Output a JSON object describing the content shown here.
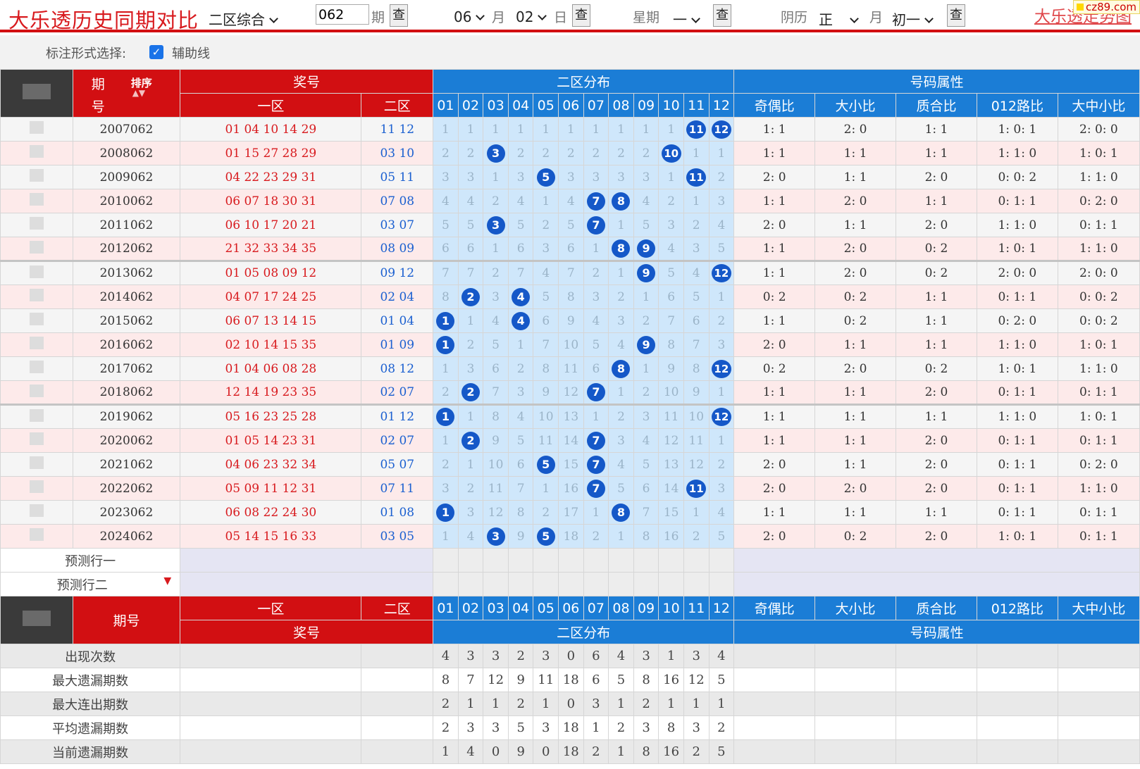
{
  "toolbar": {
    "title": "大乐透历史同期对比",
    "mode_select": "二区综合",
    "issue_value": "062",
    "issue_unit": "期",
    "query_label": "查",
    "month_value": "06",
    "month_unit": "月",
    "day_value": "02",
    "day_unit": "日",
    "week_label": "星期",
    "week_value": "一",
    "lunar_label": "阴历",
    "lunar_month": "正",
    "lunar_month_unit": "月",
    "lunar_day": "初一",
    "link_text": "大乐透走势图",
    "logo_text": "cz89.com"
  },
  "options": {
    "label": "标注形式选择:",
    "guide_line_label": "辅助线",
    "guide_line_checked": true
  },
  "header": {
    "issue_label_top": "期",
    "issue_label_bottom": "号",
    "sort_label": "排序",
    "prize": "奖号",
    "zone1": "一区",
    "zone2": "二区",
    "distribution": "二区分布",
    "attributes": "号码属性",
    "numbers": [
      "01",
      "02",
      "03",
      "04",
      "05",
      "06",
      "07",
      "08",
      "09",
      "10",
      "11",
      "12"
    ],
    "attr_names": [
      "奇偶比",
      "大小比",
      "质合比",
      "012路比",
      "大中小比"
    ]
  },
  "rows": [
    {
      "issue": "2007062",
      "zone1": "01 04 10 14 29",
      "zone2": "11 12",
      "dist": [
        "1",
        "1",
        "1",
        "1",
        "1",
        "1",
        "1",
        "1",
        "1",
        "1",
        "11",
        "12"
      ],
      "attrs": [
        "1: 1",
        "2: 0",
        "1: 1",
        "1: 0: 1",
        "2: 0: 0"
      ]
    },
    {
      "issue": "2008062",
      "zone1": "01 15 27 28 29",
      "zone2": "03 10",
      "dist": [
        "2",
        "2",
        "3",
        "2",
        "2",
        "2",
        "2",
        "2",
        "2",
        "10",
        "1",
        "1"
      ],
      "attrs": [
        "1: 1",
        "1: 1",
        "1: 1",
        "1: 1: 0",
        "1: 0: 1"
      ]
    },
    {
      "issue": "2009062",
      "zone1": "04 22 23 29 31",
      "zone2": "05 11",
      "dist": [
        "3",
        "3",
        "1",
        "3",
        "5",
        "3",
        "3",
        "3",
        "3",
        "1",
        "11",
        "2"
      ],
      "attrs": [
        "2: 0",
        "1: 1",
        "2: 0",
        "0: 0: 2",
        "1: 1: 0"
      ]
    },
    {
      "issue": "2010062",
      "zone1": "06 07 18 30 31",
      "zone2": "07 08",
      "dist": [
        "4",
        "4",
        "2",
        "4",
        "1",
        "4",
        "7",
        "8",
        "4",
        "2",
        "1",
        "3"
      ],
      "attrs": [
        "1: 1",
        "2: 0",
        "1: 1",
        "0: 1: 1",
        "0: 2: 0"
      ]
    },
    {
      "issue": "2011062",
      "zone1": "06 10 17 20 21",
      "zone2": "03 07",
      "dist": [
        "5",
        "5",
        "3",
        "5",
        "2",
        "5",
        "7",
        "1",
        "5",
        "3",
        "2",
        "4"
      ],
      "attrs": [
        "2: 0",
        "1: 1",
        "2: 0",
        "1: 1: 0",
        "0: 1: 1"
      ]
    },
    {
      "issue": "2012062",
      "zone1": "21 32 33 34 35",
      "zone2": "08 09",
      "dist": [
        "6",
        "6",
        "1",
        "6",
        "3",
        "6",
        "1",
        "8",
        "9",
        "4",
        "3",
        "5"
      ],
      "attrs": [
        "1: 1",
        "2: 0",
        "0: 2",
        "1: 0: 1",
        "1: 1: 0"
      ]
    },
    {
      "issue": "2013062",
      "zone1": "01 05 08 09 12",
      "zone2": "09 12",
      "dist": [
        "7",
        "7",
        "2",
        "7",
        "4",
        "7",
        "2",
        "1",
        "9",
        "5",
        "4",
        "12"
      ],
      "attrs": [
        "1: 1",
        "2: 0",
        "0: 2",
        "2: 0: 0",
        "2: 0: 0"
      ]
    },
    {
      "issue": "2014062",
      "zone1": "04 07 17 24 25",
      "zone2": "02 04",
      "dist": [
        "8",
        "2",
        "3",
        "4",
        "5",
        "8",
        "3",
        "2",
        "1",
        "6",
        "5",
        "1"
      ],
      "attrs": [
        "0: 2",
        "0: 2",
        "1: 1",
        "0: 1: 1",
        "0: 0: 2"
      ]
    },
    {
      "issue": "2015062",
      "zone1": "06 07 13 14 15",
      "zone2": "01 04",
      "dist": [
        "1",
        "1",
        "4",
        "4",
        "6",
        "9",
        "4",
        "3",
        "2",
        "7",
        "6",
        "2"
      ],
      "attrs": [
        "1: 1",
        "0: 2",
        "1: 1",
        "0: 2: 0",
        "0: 0: 2"
      ]
    },
    {
      "issue": "2016062",
      "zone1": "02 10 14 15 35",
      "zone2": "01 09",
      "dist": [
        "1",
        "2",
        "5",
        "1",
        "7",
        "10",
        "5",
        "4",
        "9",
        "8",
        "7",
        "3"
      ],
      "attrs": [
        "2: 0",
        "1: 1",
        "1: 1",
        "1: 1: 0",
        "1: 0: 1"
      ]
    },
    {
      "issue": "2017062",
      "zone1": "01 04 06 08 28",
      "zone2": "08 12",
      "dist": [
        "1",
        "3",
        "6",
        "2",
        "8",
        "11",
        "6",
        "8",
        "1",
        "9",
        "8",
        "12"
      ],
      "attrs": [
        "0: 2",
        "2: 0",
        "0: 2",
        "1: 0: 1",
        "1: 1: 0"
      ]
    },
    {
      "issue": "2018062",
      "zone1": "12 14 19 23 35",
      "zone2": "02 07",
      "dist": [
        "2",
        "2",
        "7",
        "3",
        "9",
        "12",
        "7",
        "1",
        "2",
        "10",
        "9",
        "1"
      ],
      "attrs": [
        "1: 1",
        "1: 1",
        "2: 0",
        "0: 1: 1",
        "0: 1: 1"
      ]
    },
    {
      "issue": "2019062",
      "zone1": "05 16 23 25 28",
      "zone2": "01 12",
      "dist": [
        "1",
        "1",
        "8",
        "4",
        "10",
        "13",
        "1",
        "2",
        "3",
        "11",
        "10",
        "12"
      ],
      "attrs": [
        "1: 1",
        "1: 1",
        "1: 1",
        "1: 1: 0",
        "1: 0: 1"
      ]
    },
    {
      "issue": "2020062",
      "zone1": "01 05 14 23 31",
      "zone2": "02 07",
      "dist": [
        "1",
        "2",
        "9",
        "5",
        "11",
        "14",
        "7",
        "3",
        "4",
        "12",
        "11",
        "1"
      ],
      "attrs": [
        "1: 1",
        "1: 1",
        "2: 0",
        "0: 1: 1",
        "0: 1: 1"
      ]
    },
    {
      "issue": "2021062",
      "zone1": "04 06 23 32 34",
      "zone2": "05 07",
      "dist": [
        "2",
        "1",
        "10",
        "6",
        "5",
        "15",
        "7",
        "4",
        "5",
        "13",
        "12",
        "2"
      ],
      "attrs": [
        "2: 0",
        "1: 1",
        "2: 0",
        "0: 1: 1",
        "0: 2: 0"
      ]
    },
    {
      "issue": "2022062",
      "zone1": "05 09 11 12 31",
      "zone2": "07 11",
      "dist": [
        "3",
        "2",
        "11",
        "7",
        "1",
        "16",
        "7",
        "5",
        "6",
        "14",
        "11",
        "3"
      ],
      "attrs": [
        "2: 0",
        "2: 0",
        "2: 0",
        "0: 1: 1",
        "1: 1: 0"
      ]
    },
    {
      "issue": "2023062",
      "zone1": "06 08 22 24 30",
      "zone2": "01 08",
      "dist": [
        "1",
        "3",
        "12",
        "8",
        "2",
        "17",
        "1",
        "8",
        "7",
        "15",
        "1",
        "4"
      ],
      "attrs": [
        "1: 1",
        "1: 1",
        "1: 1",
        "0: 1: 1",
        "0: 1: 1"
      ]
    },
    {
      "issue": "2024062",
      "zone1": "05 14 15 16 33",
      "zone2": "03 05",
      "dist": [
        "1",
        "4",
        "3",
        "9",
        "5",
        "18",
        "2",
        "1",
        "8",
        "16",
        "2",
        "5"
      ],
      "attrs": [
        "2: 0",
        "0: 2",
        "2: 0",
        "1: 0: 1",
        "0: 1: 1"
      ]
    }
  ],
  "hits": [
    [
      10,
      11
    ],
    [
      2,
      9
    ],
    [
      4,
      10
    ],
    [
      6,
      7
    ],
    [
      2,
      6
    ],
    [
      7,
      8
    ],
    [
      8,
      11
    ],
    [
      1,
      3
    ],
    [
      0,
      3
    ],
    [
      0,
      8
    ],
    [
      7,
      11
    ],
    [
      1,
      6
    ],
    [
      0,
      11
    ],
    [
      1,
      6
    ],
    [
      4,
      6
    ],
    [
      6,
      10
    ],
    [
      0,
      7
    ],
    [
      2,
      4
    ]
  ],
  "prediction": {
    "row1": "预测行一",
    "row2": "预测行二"
  },
  "footer_header": {
    "issue": "期号"
  },
  "stats": [
    {
      "label": "出现次数",
      "values": [
        "4",
        "3",
        "3",
        "2",
        "3",
        "0",
        "6",
        "4",
        "3",
        "1",
        "3",
        "4"
      ]
    },
    {
      "label": "最大遗漏期数",
      "values": [
        "8",
        "7",
        "12",
        "9",
        "11",
        "18",
        "6",
        "5",
        "8",
        "16",
        "12",
        "5"
      ]
    },
    {
      "label": "最大连出期数",
      "values": [
        "2",
        "1",
        "1",
        "2",
        "1",
        "0",
        "3",
        "1",
        "2",
        "1",
        "1",
        "1"
      ]
    },
    {
      "label": "平均遗漏期数",
      "values": [
        "2",
        "3",
        "3",
        "5",
        "3",
        "18",
        "1",
        "2",
        "3",
        "8",
        "3",
        "2"
      ]
    },
    {
      "label": "当前遗漏期数",
      "values": [
        "1",
        "4",
        "0",
        "9",
        "0",
        "18",
        "2",
        "1",
        "8",
        "16",
        "2",
        "5"
      ]
    }
  ]
}
